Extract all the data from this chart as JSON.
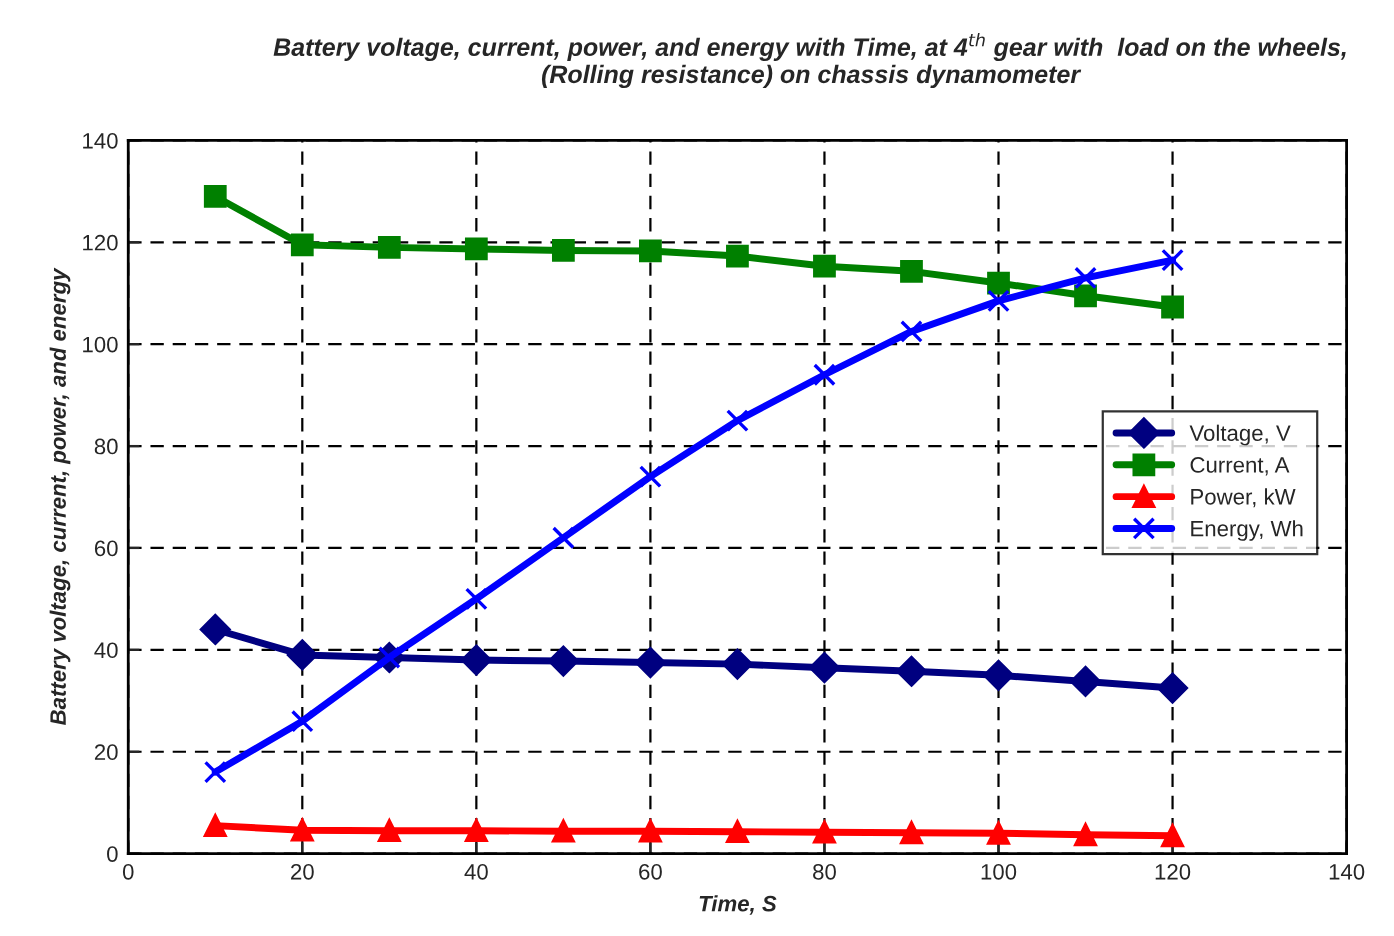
{
  "chart_data": {
    "type": "line",
    "title": "Battery voltage, current, power, and energy with Time, at 4$^{th}$ gear with  load on the wheels, (Rolling resistance) on chassis dynamometer",
    "xlabel": "Time, S",
    "ylabel": "Battery voltage, current, power, and energy",
    "x": [
      10,
      20,
      30,
      40,
      50,
      60,
      70,
      80,
      90,
      100,
      110,
      120
    ],
    "series": [
      {
        "name": "Voltage, V",
        "color": "#000080",
        "marker": "diamond",
        "values": [
          44,
          39,
          38.5,
          38,
          37.8,
          37.5,
          37.2,
          36.5,
          35.8,
          35,
          33.8,
          32.5
        ]
      },
      {
        "name": "Current, A",
        "color": "#008000",
        "marker": "square",
        "values": [
          129,
          119.5,
          119,
          118.7,
          118.4,
          118.3,
          117.3,
          115.3,
          114.3,
          112,
          109.5,
          107.3
        ]
      },
      {
        "name": "Power, kW",
        "color": "#ff0000",
        "marker": "triangle",
        "values": [
          5.5,
          4.6,
          4.5,
          4.5,
          4.4,
          4.4,
          4.3,
          4.2,
          4.1,
          4.0,
          3.7,
          3.5
        ]
      },
      {
        "name": "Energy, Wh",
        "color": "#0000ff",
        "marker": "cross",
        "values": [
          16,
          26,
          38.5,
          50,
          62,
          74,
          85,
          94,
          102.5,
          108.5,
          113,
          116.5
        ]
      }
    ],
    "xlim": [
      0,
      140
    ],
    "xticks": [
      0,
      20,
      40,
      60,
      80,
      100,
      120,
      140
    ],
    "ylim": [
      0,
      140
    ],
    "yticks": [
      0,
      20,
      40,
      60,
      80,
      100,
      120,
      140
    ],
    "grid": true,
    "legend": "right",
    "line_style": "solid"
  }
}
